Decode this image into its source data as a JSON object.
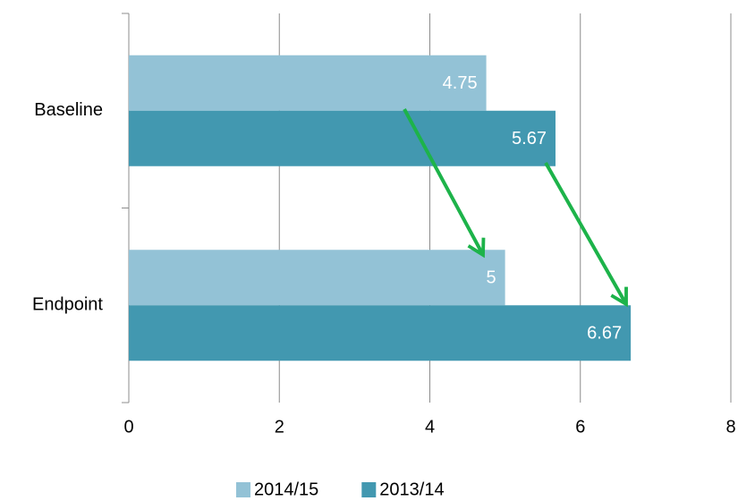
{
  "chart_data": {
    "type": "bar",
    "orientation": "horizontal",
    "categories": [
      "Baseline",
      "Endpoint"
    ],
    "series": [
      {
        "name": "2014/15",
        "color": "#93c2d6",
        "values": [
          4.75,
          5
        ]
      },
      {
        "name": "2013/14",
        "color": "#4298b0",
        "values": [
          5.67,
          6.67
        ]
      }
    ],
    "xlim": [
      0,
      8
    ],
    "xticks": [
      0,
      2,
      4,
      6,
      8
    ],
    "grid": true,
    "legend": "bottom"
  }
}
